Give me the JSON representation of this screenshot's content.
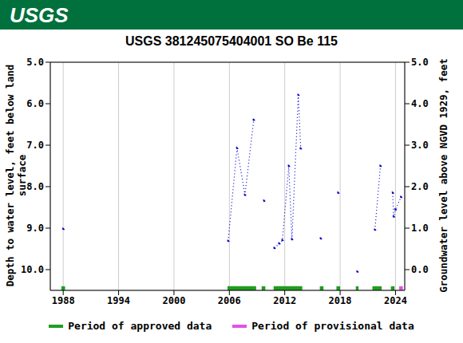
{
  "chart_data": {
    "type": "line",
    "header": "USGS",
    "title": "USGS 381245075404001 SO Be 115",
    "y_label": "Depth to water level, feet below land surface",
    "y_label_lines": [
      "Depth to water level, feet below land",
      "surface"
    ],
    "y2_label": "Groundwater level above NGVD 1929, feet",
    "x": [
      1988.0,
      1997,
      2005.87,
      2006.83,
      2007.69,
      2008.64,
      2009.2,
      2009.76,
      2010.3,
      2010.88,
      2011.4,
      2011.75,
      2012.44,
      2012.78,
      2013.47,
      2013.73,
      2014.8,
      2015.9,
      2016.8,
      2017.79,
      2018.8,
      2019.87,
      2020.8,
      2021.77,
      2022.37,
      2023.0,
      2023.7,
      2023.8,
      2024.0,
      2024.6
    ],
    "values": [
      9.02,
      null,
      9.31,
      7.07,
      8.2,
      6.39,
      null,
      8.34,
      null,
      9.48,
      9.37,
      9.29,
      7.5,
      9.27,
      5.79,
      7.08,
      null,
      9.25,
      null,
      8.15,
      null,
      10.05,
      null,
      9.04,
      7.5,
      null,
      8.15,
      8.72,
      8.55,
      8.25
    ],
    "color": "#0000cc",
    "line_style": "dotted",
    "marker": "point",
    "xlim": [
      1986.6,
      2025
    ],
    "xticks": [
      1988,
      1994,
      2000,
      2006,
      2012,
      2018,
      2024
    ],
    "ylim": [
      10.5,
      5
    ],
    "yticks": [
      {
        "value": 5,
        "label": "5.0"
      },
      {
        "value": 6,
        "label": "6.0"
      },
      {
        "value": 7,
        "label": "7.0"
      },
      {
        "value": 8,
        "label": "8.0"
      },
      {
        "value": 9,
        "label": "9.0"
      },
      {
        "value": 10,
        "label": "10.0"
      }
    ],
    "y2lim": [
      -0.5,
      5
    ],
    "y2ticks": [
      {
        "value": 0,
        "label": "0.0"
      },
      {
        "value": 1,
        "label": "1.0"
      },
      {
        "value": 2,
        "label": "2.0"
      },
      {
        "value": 3,
        "label": "3.0"
      },
      {
        "value": 4,
        "label": "4.0"
      },
      {
        "value": 5,
        "label": "5.0"
      }
    ],
    "grid": true,
    "legend": "bottom",
    "periods": [
      {
        "name": "Period of approved data",
        "color": "#1f9e1f",
        "ranges": [
          [
            1987.8,
            1988.2
          ],
          [
            2005.8,
            2008.9
          ],
          [
            2009.5,
            2009.9
          ],
          [
            2010.8,
            2013.9
          ],
          [
            2015.8,
            2016.2
          ],
          [
            2017.6,
            2018.0
          ],
          [
            2019.7,
            2020.0
          ],
          [
            2021.5,
            2022.5
          ],
          [
            2023.5,
            2023.9
          ]
        ]
      },
      {
        "name": "Period of provisional data",
        "color": "#e64fe6",
        "ranges": [
          [
            2024.4,
            2024.8
          ]
        ]
      }
    ]
  }
}
